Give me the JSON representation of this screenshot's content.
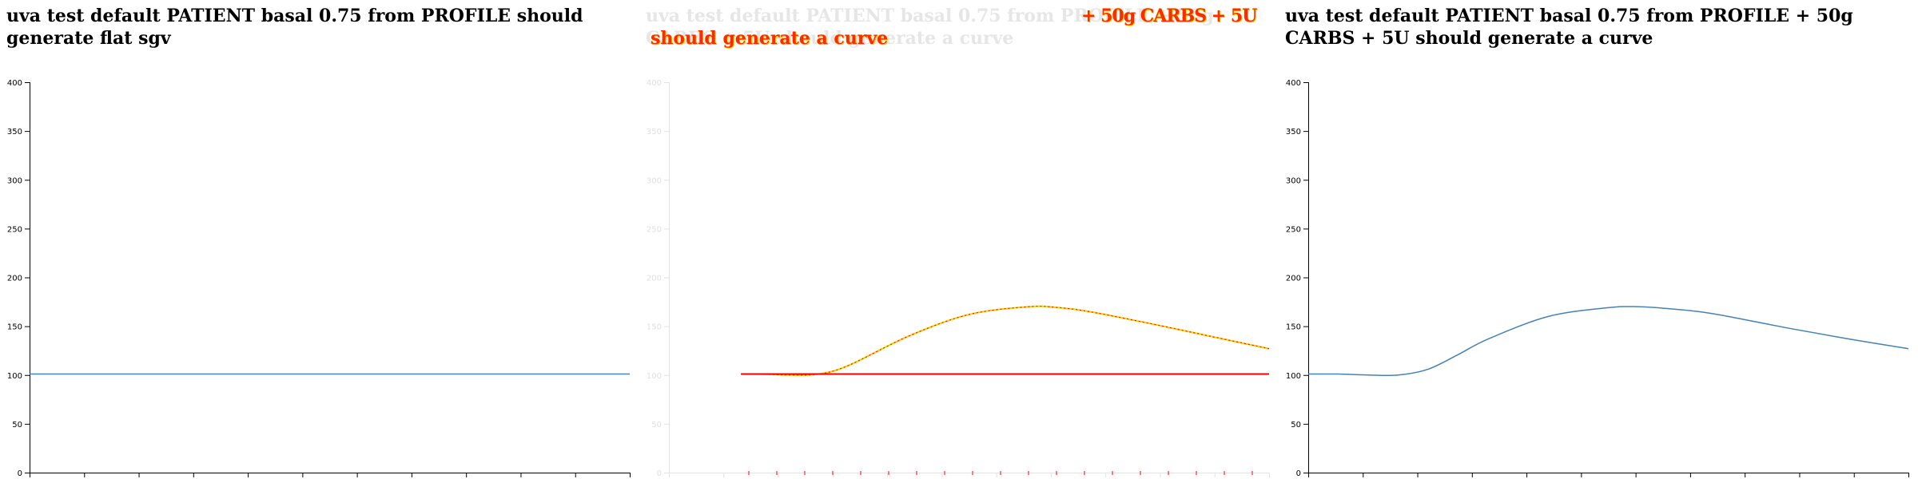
{
  "colors": {
    "line": "#4682b4",
    "red": "#ff0000",
    "yellow": "#ffcc00",
    "axis": "#000000",
    "faded_axis": "#e3e3e3"
  },
  "chart_data": [
    {
      "type": "line",
      "title": "uva test default PATIENT basal 0.75 from PROFILE should generate flat sgv",
      "ylim": [
        0,
        400
      ],
      "yticks": [
        0,
        50,
        100,
        150,
        200,
        250,
        300,
        350,
        400
      ],
      "grid": false,
      "series": [
        {
          "x": [
            0,
            1
          ],
          "y": [
            101,
            101
          ]
        }
      ]
    },
    {
      "type": "line",
      "title": "uva test default PATIENT basal 0.75 from PROFILE + 50g CARBS + 5U should generate a curve",
      "overlay_title_right": "+ 50g CARBS + 5U",
      "overlay_title_bottom": "should generate a curve",
      "ylim": [
        0,
        400
      ],
      "yticks": [
        0,
        50,
        100,
        150,
        200,
        250,
        300,
        350,
        400
      ],
      "grid": false,
      "series": [
        {
          "x": [
            0.12,
            0.15,
            0.2,
            0.25,
            0.3,
            0.4,
            0.5,
            0.6,
            0.65,
            0.7,
            0.8,
            0.9,
            1.0
          ],
          "y": [
            101,
            101,
            100,
            101,
            110,
            140,
            162,
            170,
            169,
            165,
            153,
            140,
            127
          ]
        },
        {
          "x": [
            0.12,
            1.0
          ],
          "y": [
            101,
            101
          ]
        }
      ]
    },
    {
      "type": "line",
      "title": "uva test default PATIENT basal 0.75 from PROFILE + 50g CARBS + 5U should generate a curve",
      "ylim": [
        0,
        400
      ],
      "yticks": [
        0,
        50,
        100,
        150,
        200,
        250,
        300,
        350,
        400
      ],
      "grid": false,
      "series": [
        {
          "x": [
            0,
            0.05,
            0.1,
            0.15,
            0.2,
            0.25,
            0.3,
            0.4,
            0.5,
            0.55,
            0.6,
            0.65,
            0.7,
            0.8,
            0.9,
            1.0
          ],
          "y": [
            101,
            101,
            100,
            100,
            106,
            121,
            137,
            160,
            169,
            170,
            168,
            165,
            160,
            148,
            137,
            127
          ]
        }
      ]
    }
  ]
}
